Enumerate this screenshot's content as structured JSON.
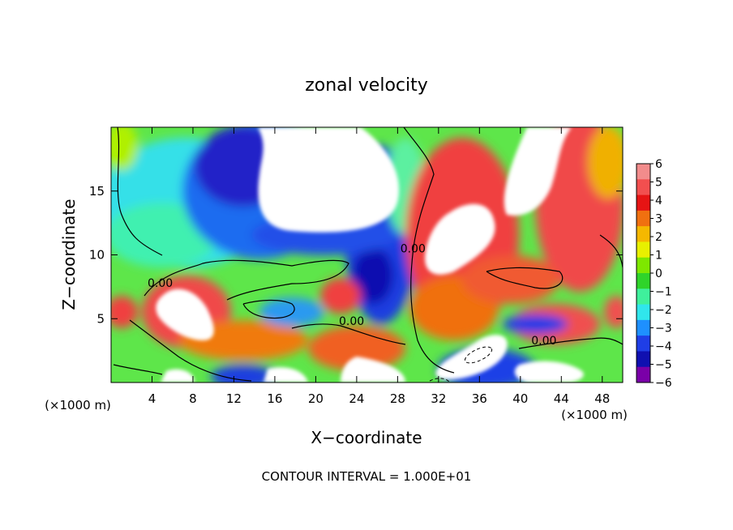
{
  "chart_data": {
    "type": "heatmap",
    "title": "zonal velocity",
    "xlabel": "X−coordinate",
    "ylabel": "Z−coordinate",
    "x_unit_left": "(×1000 m)",
    "x_unit_right": "(×1000 m)",
    "xlim": [
      0,
      50
    ],
    "ylim": [
      0,
      20
    ],
    "x_ticks": [
      4,
      8,
      12,
      16,
      20,
      24,
      28,
      32,
      36,
      40,
      44,
      48
    ],
    "y_ticks": [
      5,
      10,
      15
    ],
    "colorbar": {
      "levels": [
        6,
        5,
        4,
        3,
        2,
        1,
        0,
        -1,
        -2,
        -3,
        -4,
        -5,
        -6
      ],
      "tick_labels": [
        "6",
        "5",
        "4",
        "3",
        "2",
        "1",
        "0",
        "−1",
        "−2",
        "−3",
        "−4",
        "−5",
        "−6"
      ],
      "colors": [
        "#f28c8c",
        "#f24f4f",
        "#e61414",
        "#f07010",
        "#f5b800",
        "#e8f000",
        "#7ee800",
        "#2fd42a",
        "#3ff09c",
        "#30e6ec",
        "#1e90ff",
        "#1f3ee6",
        "#1010b0",
        "#7a00a8"
      ]
    },
    "contour_labels": [
      {
        "text": "0.00",
        "x": 4.8,
        "y": 7.5
      },
      {
        "text": "0.00",
        "x": 29.5,
        "y": 10.2
      },
      {
        "text": "0.00",
        "x": 23.5,
        "y": 4.5
      },
      {
        "text": "0.00",
        "x": 42.3,
        "y": 3.0
      }
    ],
    "grid": false
  },
  "footer": {
    "contour_interval": "CONTOUR INTERVAL = 1.000E+01"
  }
}
